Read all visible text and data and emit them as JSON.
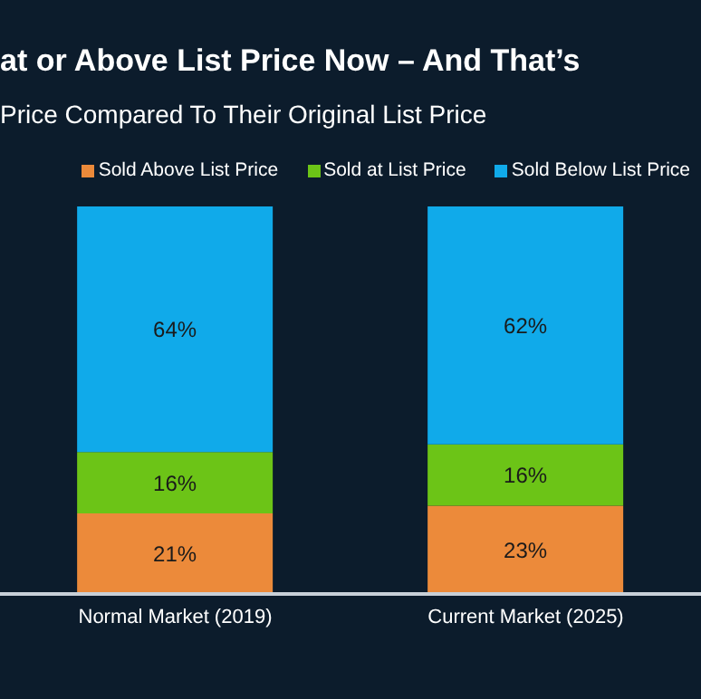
{
  "chart_data": {
    "type": "bar",
    "title": "at or Above List Price Now – And That’s",
    "subtitle": "Price Compared To Their Original List Price",
    "categories": [
      "Normal Market (2019)",
      "Current Market (2025)"
    ],
    "stacked": true,
    "legend": "top right",
    "grid": false,
    "series": [
      {
        "name": "Sold Above List Price",
        "color": "#ec8a3a",
        "values": [
          21,
          23
        ],
        "value_labels": [
          "21%",
          "23%"
        ]
      },
      {
        "name": "Sold at List Price",
        "color": "#6cc417",
        "values": [
          16,
          16
        ],
        "value_labels": [
          "16%",
          "16%"
        ]
      },
      {
        "name": "Sold Below List Price",
        "color": "#10aaea",
        "values": [
          64,
          62
        ],
        "value_labels": [
          "64%",
          "62%"
        ]
      }
    ]
  }
}
